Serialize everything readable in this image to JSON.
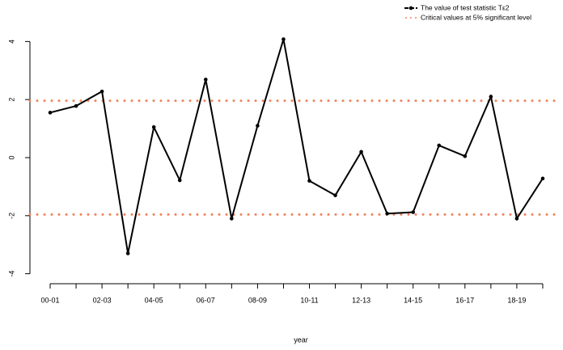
{
  "chart_data": {
    "type": "line",
    "x_label": "year",
    "categories": [
      "00-01",
      null,
      "02-03",
      null,
      "04-05",
      null,
      "06-07",
      null,
      "08-09",
      null,
      "10-11",
      null,
      "12-13",
      null,
      "14-15",
      null,
      "16-17",
      null,
      "18-19",
      null
    ],
    "series": [
      {
        "name": "The value of test statistic Tε2",
        "color": "#000000",
        "values": [
          1.55,
          1.78,
          2.28,
          -3.3,
          1.05,
          -0.78,
          2.69,
          -2.1,
          1.1,
          4.08,
          -0.8,
          -1.3,
          0.2,
          -1.93,
          -1.88,
          0.42,
          0.05,
          2.1,
          -2.1,
          -0.72
        ]
      }
    ],
    "hlines": {
      "name": "Critical values at 5% significant level",
      "color": "#f4805c",
      "values": [
        1.96,
        -1.96
      ]
    },
    "ylim": [
      -4.4,
      4.4
    ],
    "yticks": [
      -4,
      -2,
      0,
      2,
      4
    ],
    "legend": "top-right"
  }
}
